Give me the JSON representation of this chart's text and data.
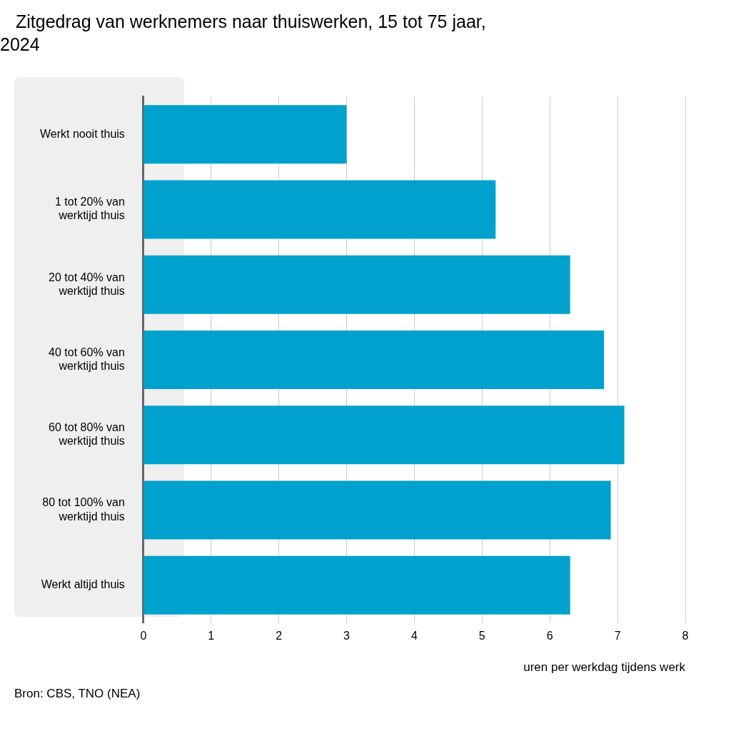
{
  "chart_data": {
    "type": "bar",
    "orientation": "horizontal",
    "title": "Zitgedrag van werknemers naar thuiswerken, 15 tot 75 jaar, 2024",
    "categories": [
      "Werkt nooit thuis",
      "1 tot 20% van werktijd thuis",
      "20 tot 40% van werktijd thuis",
      "40 tot 60% van werktijd thuis",
      "60 tot 80% van werktijd thuis",
      "80 tot 100% van werktijd thuis",
      "Werkt altijd thuis"
    ],
    "values": [
      3.0,
      5.2,
      6.3,
      6.8,
      7.1,
      6.9,
      6.3
    ],
    "color": "#00a1cd",
    "xlim": [
      0,
      8
    ],
    "xticks": [
      0,
      1,
      2,
      3,
      4,
      5,
      6,
      7,
      8
    ],
    "xlabel": "uren per werkdag tijdens werk",
    "grid": "x",
    "legend": false,
    "annotations": [
      "Bron: CBS, TNO (NEA)"
    ]
  }
}
